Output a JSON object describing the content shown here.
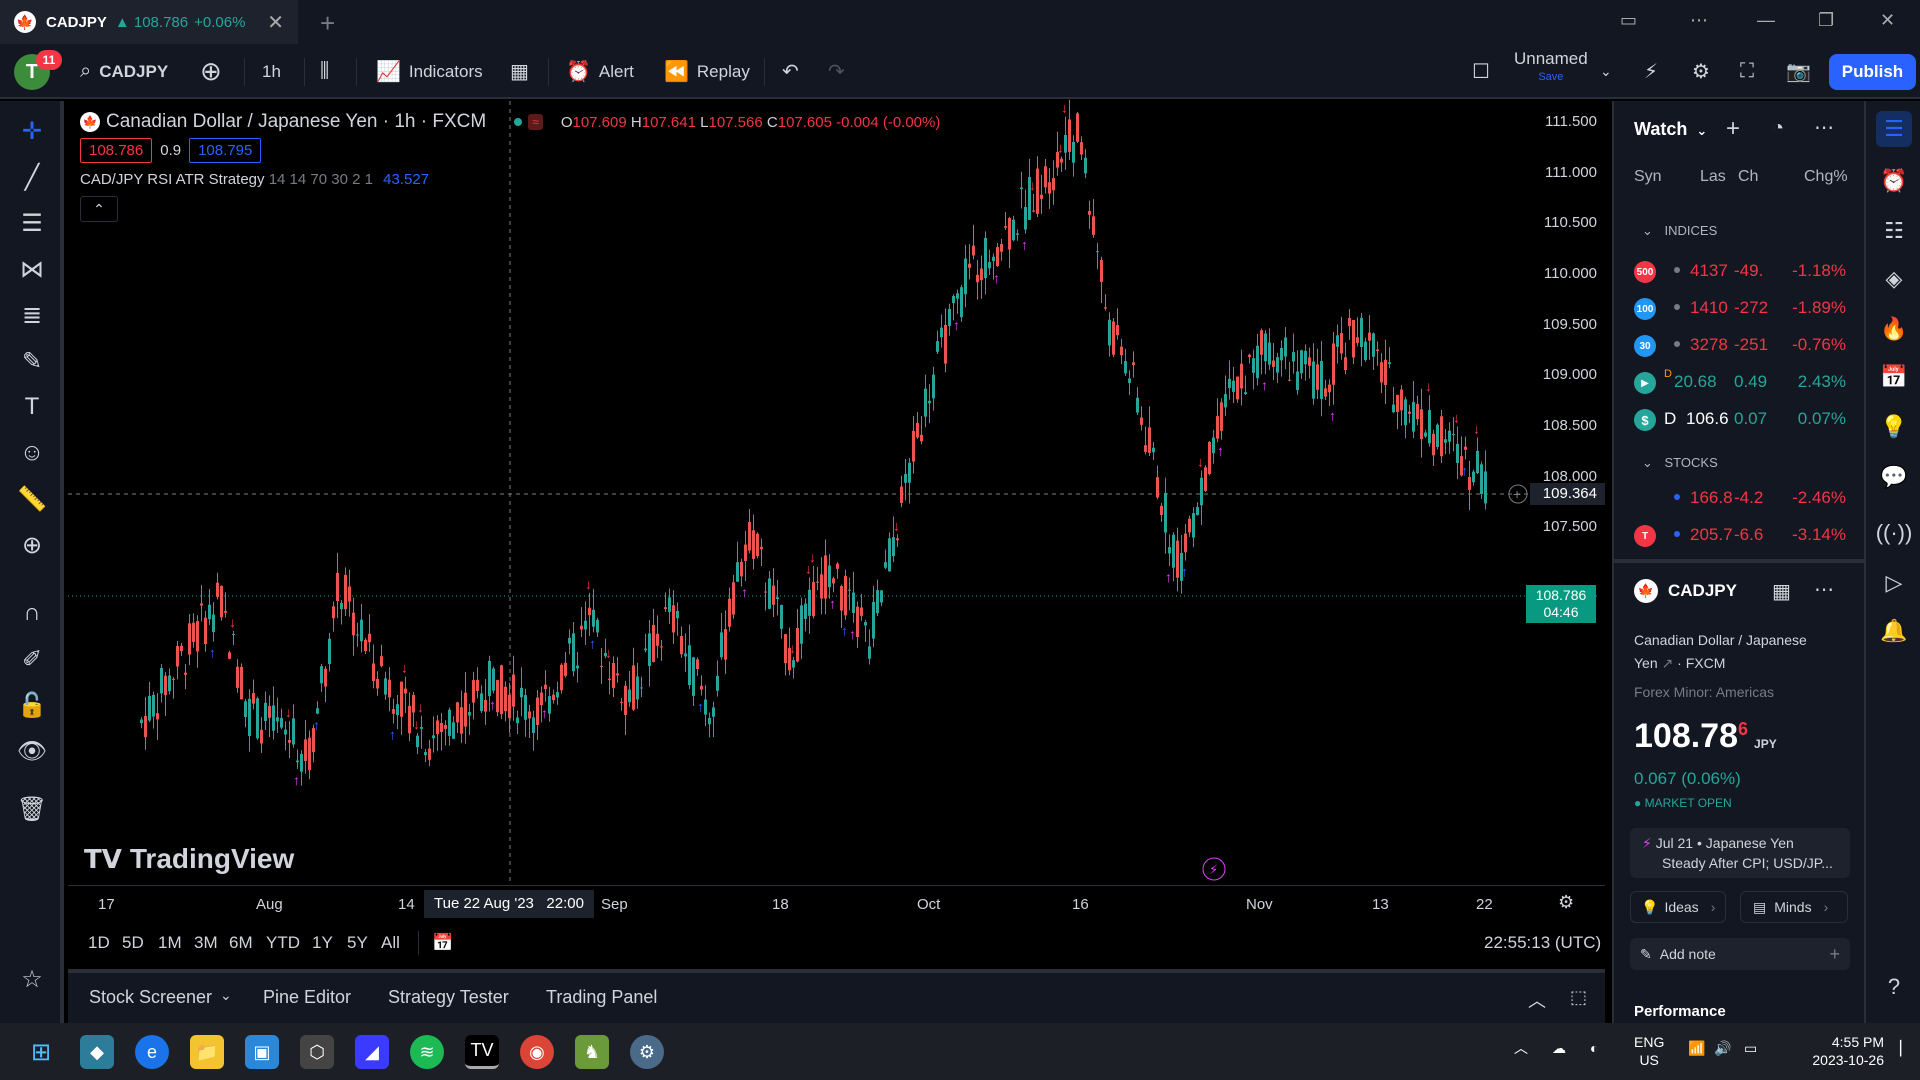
{
  "titlebar": {
    "tab_symbol": "CADJPY",
    "tab_price": "▲ 108.786",
    "tab_change": "+0.06%",
    "close": "✕",
    "new_tab": "+",
    "window_controls": [
      "—",
      "❐",
      "✕"
    ]
  },
  "toolbar": {
    "avatar_letter": "T",
    "avatar_badge": "11",
    "symbol": "CADJPY",
    "interval": "1h",
    "indicators": "Indicators",
    "alert": "Alert",
    "replay": "Replay",
    "layout_name": "Unnamed",
    "layout_save": "Save",
    "publish": "Publish"
  },
  "legend": {
    "title": "Canadian Dollar / Japanese Yen · 1h · FXCM",
    "ohlc": {
      "o_label": "O",
      "o": "107.609",
      "h_label": "H",
      "h": "107.641",
      "l_label": "L",
      "l": "107.566",
      "c_label": "C",
      "c": "107.605",
      "change": "-0.004 (-0.00%)"
    },
    "bid": "108.786",
    "spread": "0.9",
    "ask": "108.795",
    "indicator_name": "CAD/JPY RSI ATR Strategy",
    "indicator_params": "14 14 70 30 2 1",
    "indicator_value": "43.527"
  },
  "price_axis": {
    "ticks": [
      "111.500",
      "111.000",
      "110.500",
      "110.000",
      "109.500",
      "109.000",
      "108.500",
      "108.000",
      "107.500"
    ],
    "crosshair_price": "109.364",
    "last_price": "108.786",
    "countdown": "04:46"
  },
  "time_axis": {
    "ticks": [
      "17",
      "Aug",
      "14",
      "Sep",
      "18",
      "Oct",
      "16",
      "Nov",
      "13",
      "22"
    ],
    "crosshair_time": "Tue 22 Aug '23   22:00"
  },
  "range_bar": {
    "ranges": [
      "1D",
      "5D",
      "1M",
      "3M",
      "6M",
      "YTD",
      "1Y",
      "5Y",
      "All"
    ],
    "clock": "22:55:13 (UTC)"
  },
  "bottom_panel": {
    "tabs": [
      "Stock Screener",
      "Pine Editor",
      "Strategy Tester",
      "Trading Panel"
    ]
  },
  "watermark": "TradingView",
  "watchlist": {
    "title": "Watch",
    "columns": [
      "Syn",
      "Las",
      "Ch",
      "Chg%"
    ],
    "section_indices": "INDICES",
    "section_stocks": "STOCKS",
    "rows": [
      {
        "logo": "500",
        "color": "#f23645",
        "last": "4137",
        "change": "-49.",
        "pct": "-1.18%",
        "dir": "neg"
      },
      {
        "logo": "100",
        "color": "#2196f3",
        "last": "1410",
        "change": "-272",
        "pct": "-1.89%",
        "dir": "neg"
      },
      {
        "logo": "30",
        "color": "#2196f3",
        "last": "3278",
        "change": "-251",
        "pct": "-0.76%",
        "dir": "neg"
      },
      {
        "logo": "D",
        "color": "#26a69a",
        "last": "20.68",
        "change": "0.49",
        "pct": "2.43%",
        "dir": "pos"
      },
      {
        "logo": "$",
        "color": "#26a69a",
        "last": "106.6",
        "change": "0.07",
        "pct": "0.07%",
        "dir": "pos"
      },
      {
        "logo": "",
        "color": "#ffffff",
        "last": "166.8",
        "change": "-4.2",
        "pct": "-2.46%",
        "dir": "neg"
      },
      {
        "logo": "T",
        "color": "#f23645",
        "last": "205.7",
        "change": "-6.6",
        "pct": "-3.14%",
        "dir": "neg"
      }
    ]
  },
  "details": {
    "symbol": "CADJPY",
    "name_line1": "Canadian Dollar / Japanese",
    "name_line2": "Yen",
    "exchange": "FXCM",
    "category": "Forex Minor: Americas",
    "price_main": "108.78",
    "price_sup": "6",
    "currency": "JPY",
    "change": "0.067 (0.06%)",
    "market_status": "MARKET OPEN",
    "news_date": "Jul 21",
    "news_line1": "Japanese Yen",
    "news_line2": "Steady After CPI; USD/JP...",
    "ideas": "Ideas",
    "minds": "Minds",
    "add_note": "Add note",
    "performance": "Performance"
  },
  "taskbar": {
    "lang1": "ENG",
    "lang2": "US",
    "time": "4:55 PM",
    "date": "2023-10-26"
  },
  "colors": {
    "accent": "#2962ff",
    "up": "#26a69a",
    "down": "#f23645",
    "signal": "#e040fb"
  }
}
